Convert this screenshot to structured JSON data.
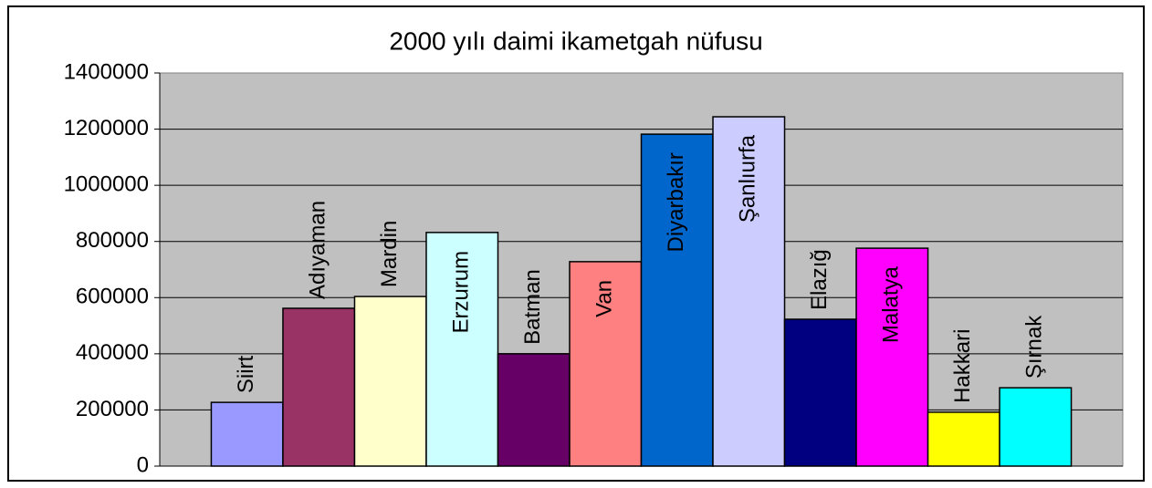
{
  "chart_data": {
    "type": "bar",
    "title": "2000 yılı daimi ikametgah nüfusu",
    "categories": [
      "Siirt",
      "Adıyaman",
      "Mardin",
      "Erzurum",
      "Batman",
      "Van",
      "Diyarbakır",
      "Şanlıurfa",
      "Elazığ",
      "Malatya",
      "Hakkari",
      "Şırnak"
    ],
    "values": [
      227000,
      562000,
      604000,
      832000,
      400000,
      728000,
      1182000,
      1244000,
      523000,
      776000,
      192000,
      279000
    ],
    "colors": [
      "#9999ff",
      "#993366",
      "#ffffcc",
      "#ccffff",
      "#660066",
      "#ff8080",
      "#0066cc",
      "#ccccff",
      "#000080",
      "#ff00ff",
      "#ffff00",
      "#00ffff"
    ],
    "ylim": [
      0,
      1400000
    ],
    "yticks": [
      0,
      200000,
      400000,
      600000,
      800000,
      1000000,
      1200000,
      1400000
    ],
    "grid": true
  }
}
